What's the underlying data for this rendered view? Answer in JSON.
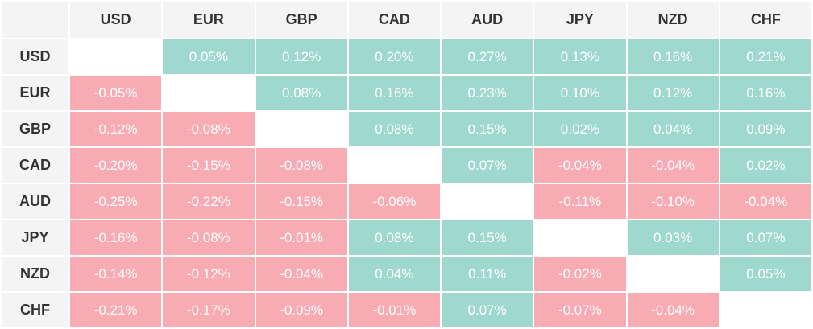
{
  "colors": {
    "positive": "#9fd8cf",
    "negative": "#f9abb3",
    "header_bg": "#f4f4f4",
    "diagonal": "#ffffff",
    "cell_text": "#ffffff",
    "header_text": "#333333"
  },
  "chart_data": {
    "type": "heatmap",
    "columns": [
      "USD",
      "EUR",
      "GBP",
      "CAD",
      "AUD",
      "JPY",
      "NZD",
      "CHF"
    ],
    "rows": [
      "USD",
      "EUR",
      "GBP",
      "CAD",
      "AUD",
      "JPY",
      "NZD",
      "CHF"
    ],
    "values": [
      [
        null,
        0.05,
        0.12,
        0.2,
        0.27,
        0.13,
        0.16,
        0.21
      ],
      [
        -0.05,
        null,
        0.08,
        0.16,
        0.23,
        0.1,
        0.12,
        0.16
      ],
      [
        -0.12,
        -0.08,
        null,
        0.08,
        0.15,
        0.02,
        0.04,
        0.09
      ],
      [
        -0.2,
        -0.15,
        -0.08,
        null,
        0.07,
        -0.04,
        -0.04,
        0.02
      ],
      [
        -0.25,
        -0.22,
        -0.15,
        -0.06,
        null,
        -0.11,
        -0.1,
        -0.04
      ],
      [
        -0.16,
        -0.08,
        -0.01,
        0.08,
        0.15,
        null,
        0.03,
        0.07
      ],
      [
        -0.14,
        -0.12,
        -0.04,
        0.04,
        0.11,
        -0.02,
        null,
        0.05
      ],
      [
        -0.21,
        -0.17,
        -0.09,
        -0.01,
        0.07,
        -0.07,
        -0.04,
        null
      ]
    ],
    "unit": "%",
    "decimals": 2
  }
}
